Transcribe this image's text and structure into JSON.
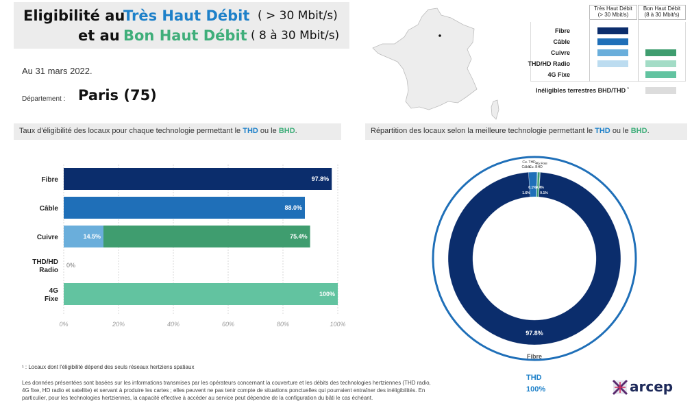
{
  "header": {
    "title_line1_prefix": "Eligibilité au",
    "title_line1_tech": "Très Haut Débit",
    "title_line1_speed": "( > 30 Mbit/s)",
    "title_line2_prefix": "et au",
    "title_line2_tech": "Bon Haut Débit",
    "title_line2_speed": "( 8 à 30 Mbit/s)"
  },
  "date_text": "Au 31 mars 2022.",
  "department": {
    "label": "Département :",
    "name": "Paris (75)"
  },
  "left_panel": {
    "title_prefix": "Taux d'éligibilité des locaux pour chaque technologie permettant le",
    "title_thd": "THD",
    "title_mid": "ou le",
    "title_bhd": "BHD",
    "title_suffix": "."
  },
  "right_panel": {
    "title_prefix": "Répartition des locaux selon la meilleure technologie permettant le",
    "title_thd": "THD",
    "title_mid": "ou le",
    "title_bhd": "BHD",
    "title_suffix": "."
  },
  "legend": {
    "col_thd": [
      "Très Haut Débit",
      "(> 30 Mbit/s)"
    ],
    "col_bhd": [
      "Bon Haut Débit",
      "(8 à 30 Mbit/s)"
    ],
    "rows": [
      {
        "label": "Fibre",
        "thd_color": "#0b2d6c",
        "bhd_color": null
      },
      {
        "label": "Câble",
        "thd_color": "#1f6fb8",
        "bhd_color": null
      },
      {
        "label": "Cuivre",
        "thd_color": "#6aaedb",
        "bhd_color": "#3f9d6f"
      },
      {
        "label": "THD/HD Radio",
        "thd_color": "#bcdcf0",
        "bhd_color": "#a3dcc6"
      },
      {
        "label": "4G Fixe",
        "thd_color": null,
        "bhd_color": "#62c3a0"
      }
    ],
    "ineligible_label": "Inéligibles terrestres BHD/THD",
    "ineligible_mark": "¹",
    "ineligible_color": "#dcdcdc"
  },
  "chart_data": [
    {
      "type": "bar",
      "orientation": "horizontal",
      "stacked": true,
      "categories": [
        "Fibre",
        "Câble",
        "Cuivre",
        "THD/HD Radio",
        "4G Fixe"
      ],
      "series": [
        {
          "values": [
            97.8,
            88.0,
            14.5,
            0,
            null
          ],
          "value_labels": [
            "97.8%",
            "88.0%",
            "14.5%",
            "0%",
            null
          ]
        },
        {
          "values": [
            null,
            null,
            75.4,
            null,
            100
          ],
          "value_labels": [
            null,
            null,
            "75.4%",
            null,
            "100%"
          ]
        }
      ],
      "colors": [
        [
          "#0b2d6c"
        ],
        [
          "#1f6fb8"
        ],
        [
          "#6aaedb",
          "#3f9d6f"
        ],
        [
          "#bcdcf0"
        ],
        [
          "#62c3a0"
        ]
      ],
      "xlim": [
        0,
        100
      ],
      "xticks": [
        "0%",
        "20%",
        "40%",
        "60%",
        "80%",
        "100%"
      ],
      "grid": true
    },
    {
      "type": "pie",
      "donut": true,
      "slices": [
        {
          "label": "Fibre",
          "value": 97.8,
          "value_label": "97.8%",
          "color": "#0b2d6c"
        },
        {
          "label": "Câble",
          "value": 1.6,
          "value_label": "1.6%",
          "color": "#1f6fb8"
        },
        {
          "label": "Cu. THD",
          "value": 0.1,
          "value_label": "0.1%",
          "color": "#6aaedb"
        },
        {
          "label": "Cu. BHD",
          "value": 0.4,
          "value_label": "0.4%",
          "color": "#3f9d6f"
        },
        {
          "label": "4G Fixe",
          "value": 0.1,
          "value_label": "0.1%",
          "color": "#62c3a0"
        }
      ],
      "outer_ring": {
        "label": "THD",
        "value": "100%"
      }
    }
  ],
  "footnotes": {
    "note1": "¹ : Locaux dont l'éligibilité dépend des seuls réseaux hertziens spatiaux",
    "note2": "Les données présentées sont basées sur les informations transmises par les opérateurs concernant la couverture et les débits des technologies hertziennes (THD radio, 4G fixe, HD radio et satellite) et servant à produire les cartes ; elles peuvent ne pas tenir compte de situations ponctuelles qui pourraient entraîner des inéligibilités. En particulier, pour les technologies hertziennes, la capacité effective à accéder au service peut dépendre de la configuration du bâti le cas échéant."
  },
  "logo": {
    "text": "arcep",
    "icon": "arcep-logo-icon"
  }
}
